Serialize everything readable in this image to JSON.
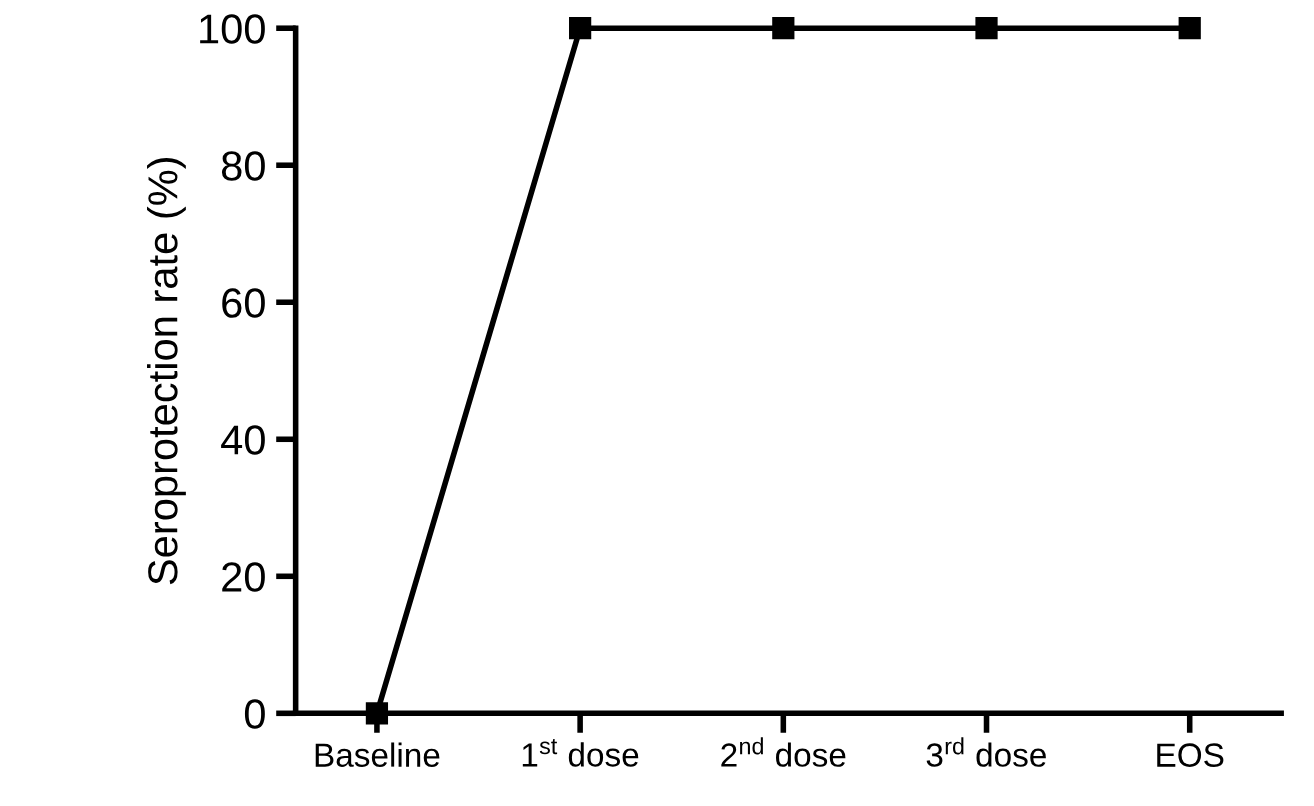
{
  "chart_data": {
    "type": "line",
    "ylabel": "Seroprotection rate (%)",
    "categories": [
      "Baseline",
      "1$^{st}$ dose",
      "2$^{nd}$ dose",
      "3$^{rd}$ dose",
      "EOS"
    ],
    "series": [
      {
        "color": "#000000",
        "values": [
          0,
          100,
          100,
          100,
          100
        ]
      }
    ],
    "ylim": [
      0,
      100
    ],
    "yticks": [
      0,
      20,
      40,
      60,
      80,
      100
    ],
    "grid": false,
    "marker": "square",
    "line_style": "solid"
  }
}
